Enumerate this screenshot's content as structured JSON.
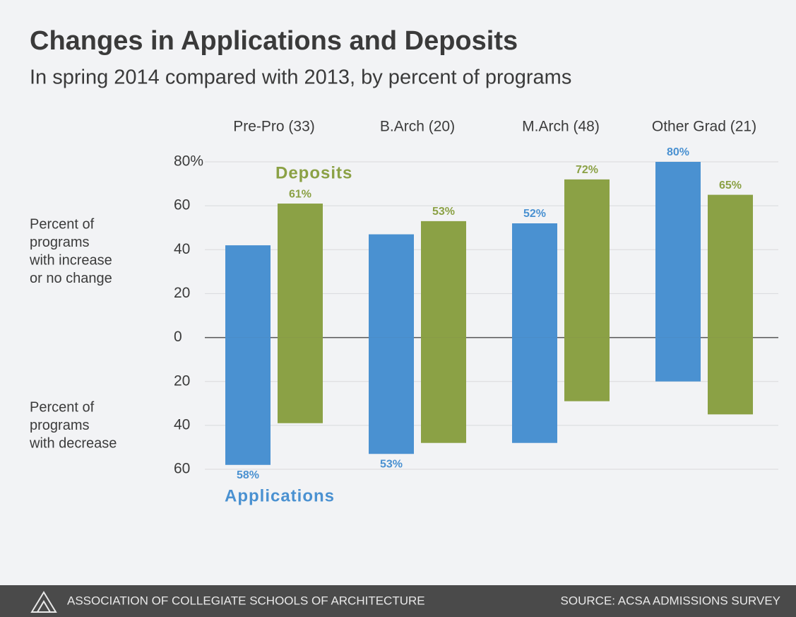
{
  "chart_data": {
    "type": "diverging-bar",
    "title": "Changes in Applications and Deposits",
    "subtitle": "In spring 2014 compared with 2013, by percent of programs",
    "categories": [
      "Pre-Pro (33)",
      "B.Arch (20)",
      "M.Arch (48)",
      "Other Grad (21)"
    ],
    "upper_label": [
      "Percent of",
      "programs",
      "with increase",
      "or no change"
    ],
    "lower_label": [
      "Percent of",
      "programs",
      "with decrease"
    ],
    "series": [
      {
        "name": "Applications",
        "color": "#4a91d1",
        "values": [
          42,
          47,
          52,
          80
        ],
        "value_labels": [
          null,
          null,
          "52%",
          "80%"
        ],
        "decrease": [
          58,
          53,
          48,
          20
        ],
        "decrease_labels": [
          "58%",
          "53%",
          null,
          null
        ]
      },
      {
        "name": "Deposits",
        "color": "#8ba145",
        "values": [
          61,
          53,
          72,
          65
        ],
        "value_labels": [
          "61%",
          "53%",
          "72%",
          "65%"
        ],
        "decrease": [
          39,
          48,
          29,
          35
        ]
      }
    ],
    "ylim": [
      -60,
      80
    ],
    "yticks": [
      {
        "value": 80,
        "label": "80%"
      },
      60,
      40,
      20,
      0,
      {
        "value": -20,
        "label": "20"
      },
      {
        "value": -40,
        "label": "40"
      },
      {
        "value": -60,
        "label": "60"
      }
    ],
    "grid": true,
    "footer_left": "ASSOCIATION OF COLLEGIATE SCHOOLS OF ARCHITECTURE",
    "footer_right": "SOURCE: ACSA ADMISSIONS SURVEY"
  }
}
